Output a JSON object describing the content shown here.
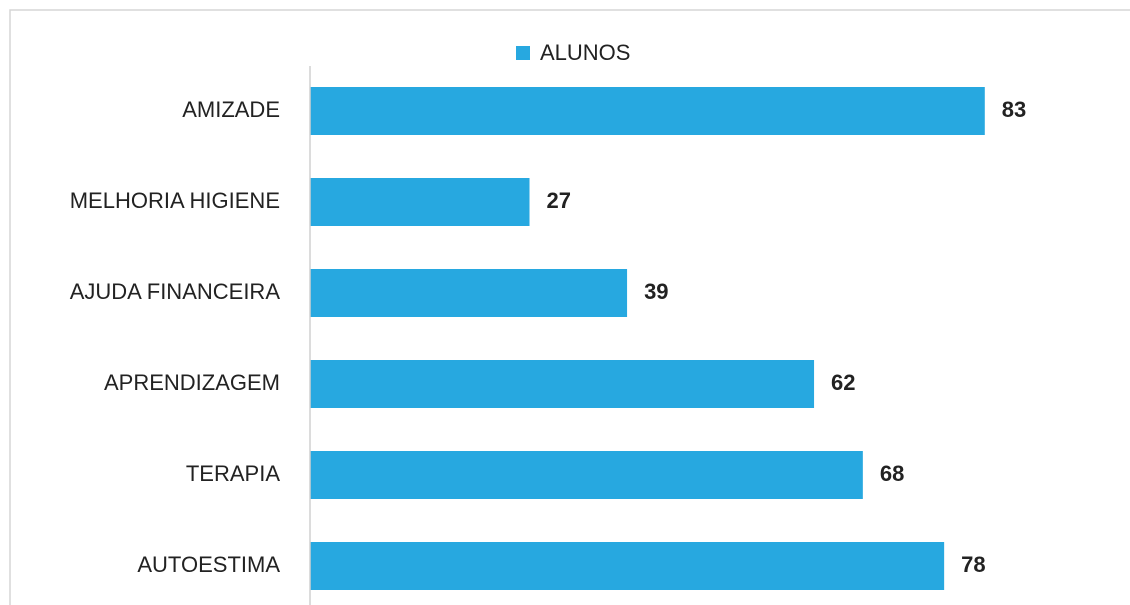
{
  "chart_data": {
    "type": "barh",
    "categories": [
      "AMIZADE",
      "MELHORIA HIGIENE",
      "AJUDA FINANCEIRA",
      "APRENDIZAGEM",
      "TERAPIA",
      "AUTOESTIMA"
    ],
    "series": [
      {
        "name": "ALUNOS",
        "color": "#27a8e0",
        "values": [
          83,
          27,
          39,
          62,
          68,
          78
        ]
      }
    ],
    "xlim": [
      0,
      100
    ],
    "legend": "top"
  }
}
